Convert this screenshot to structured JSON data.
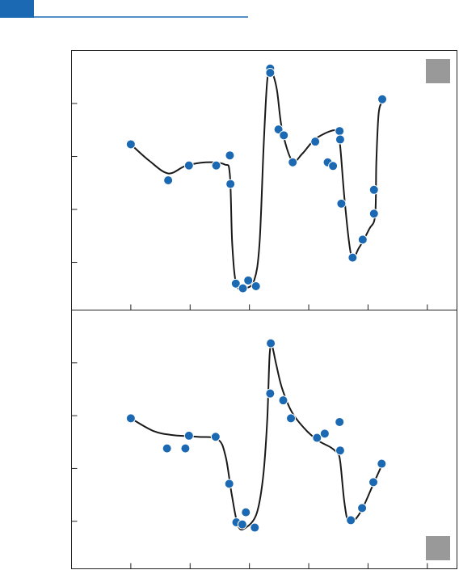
{
  "chart_data": [
    {
      "type": "scatter",
      "xlim": [
        0,
        6.5
      ],
      "ylim": [
        0.1,
        5
      ],
      "xticks": [
        1,
        2,
        3,
        4,
        5,
        6
      ],
      "yticks": [
        1,
        2,
        3,
        4
      ],
      "series": [
        {
          "type": "points",
          "color": "#1b68b3",
          "x": [
            1.0,
            1.63,
            1.98,
            2.44,
            2.67,
            2.68,
            2.77,
            2.89,
            2.98,
            3.11,
            3.35,
            3.35,
            3.49,
            3.58,
            3.73,
            4.11,
            4.32,
            4.41,
            4.52,
            4.53,
            4.55,
            4.74,
            4.91,
            5.1,
            5.1,
            5.24
          ],
          "values": [
            3.23,
            2.55,
            2.83,
            2.83,
            3.02,
            2.48,
            0.6,
            0.51,
            0.66,
            0.55,
            4.66,
            4.58,
            3.51,
            3.4,
            2.89,
            3.28,
            2.89,
            2.82,
            3.48,
            3.32,
            2.11,
            1.09,
            1.43,
            1.92,
            2.37,
            4.08
          ]
        },
        {
          "type": "line",
          "color": "#1a1a1a",
          "x": [
            1.0,
            1.31,
            1.63,
            1.92,
            2.26,
            2.58,
            2.67,
            2.71,
            2.78,
            2.92,
            3.08,
            3.17,
            3.24,
            3.3,
            3.36,
            3.46,
            3.55,
            3.72,
            3.89,
            4.1,
            4.37,
            4.48,
            4.53,
            4.61,
            4.72,
            4.85,
            5.02,
            5.12,
            5.14,
            5.18,
            5.25
          ],
          "values": [
            3.23,
            2.92,
            2.68,
            2.82,
            2.89,
            2.85,
            2.66,
            1.35,
            0.58,
            0.51,
            0.66,
            1.35,
            3.2,
            4.43,
            4.63,
            4.28,
            3.51,
            2.92,
            3.05,
            3.32,
            3.48,
            3.46,
            3.2,
            2.12,
            1.12,
            1.28,
            1.63,
            1.89,
            2.89,
            3.82,
            4.05
          ]
        }
      ]
    },
    {
      "type": "scatter",
      "xlim": [
        0,
        6.5
      ],
      "ylim": [
        0.1,
        5
      ],
      "xticks": [
        1,
        2,
        3,
        4,
        5,
        6
      ],
      "yticks": [
        1,
        2,
        3,
        4
      ],
      "series": [
        {
          "type": "points",
          "color": "#1b68b3",
          "x": [
            1.0,
            1.61,
            1.92,
            1.98,
            2.43,
            2.66,
            2.78,
            2.88,
            2.94,
            3.09,
            3.35,
            3.36,
            3.57,
            3.7,
            4.14,
            4.27,
            4.52,
            4.53,
            4.71,
            4.9,
            5.09,
            5.23
          ],
          "values": [
            2.95,
            2.38,
            2.38,
            2.62,
            2.6,
            1.71,
            0.98,
            0.94,
            1.17,
            0.88,
            3.42,
            4.37,
            3.29,
            2.95,
            2.58,
            2.66,
            2.88,
            2.34,
            1.02,
            1.25,
            1.74,
            2.09
          ]
        },
        {
          "type": "line",
          "color": "#1a1a1a",
          "x": [
            1.0,
            1.38,
            1.72,
            2.13,
            2.47,
            2.6,
            2.7,
            2.81,
            2.94,
            3.12,
            3.23,
            3.3,
            3.34,
            3.38,
            3.45,
            3.55,
            3.72,
            3.96,
            4.17,
            4.37,
            4.48,
            4.53,
            4.6,
            4.67,
            4.78,
            4.91,
            5.08,
            5.24
          ],
          "values": [
            2.95,
            2.71,
            2.63,
            2.6,
            2.55,
            2.22,
            1.52,
            0.91,
            0.88,
            1.14,
            1.83,
            2.91,
            4.14,
            4.32,
            3.98,
            3.52,
            3.06,
            2.72,
            2.52,
            2.4,
            2.29,
            2.14,
            1.37,
            0.98,
            1.03,
            1.25,
            1.68,
            2.08
          ]
        }
      ]
    }
  ]
}
